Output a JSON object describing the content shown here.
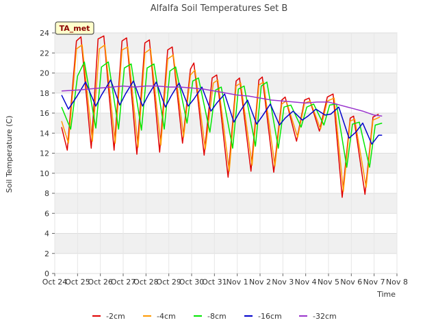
{
  "chart_data": {
    "type": "line",
    "title": "Alfalfa Soil Temperatures Set B",
    "xlabel": "Time",
    "ylabel": "Soil Temperature (C)",
    "badge": "TA_met",
    "xlim": [
      0,
      15
    ],
    "ylim": [
      0,
      24
    ],
    "x_ticks": [
      {
        "pos": 0,
        "label": "Oct 24"
      },
      {
        "pos": 1,
        "label": "Oct 25"
      },
      {
        "pos": 2,
        "label": "Oct 26"
      },
      {
        "pos": 3,
        "label": "Oct 27"
      },
      {
        "pos": 4,
        "label": "Oct 28"
      },
      {
        "pos": 5,
        "label": "Oct 29"
      },
      {
        "pos": 6,
        "label": "Oct 30"
      },
      {
        "pos": 7,
        "label": "Oct 31"
      },
      {
        "pos": 8,
        "label": "Nov 1"
      },
      {
        "pos": 9,
        "label": "Nov 2"
      },
      {
        "pos": 10,
        "label": "Nov 3"
      },
      {
        "pos": 11,
        "label": "Nov 4"
      },
      {
        "pos": 12,
        "label": "Nov 5"
      },
      {
        "pos": 13,
        "label": "Nov 6"
      },
      {
        "pos": 14,
        "label": "Nov 7"
      },
      {
        "pos": 15,
        "label": "Nov 8"
      }
    ],
    "y_ticks": [
      0,
      2,
      4,
      6,
      8,
      10,
      12,
      14,
      16,
      18,
      20,
      22,
      24
    ],
    "grid": true,
    "legend_position": "bottom",
    "series": [
      {
        "name": "-2cm",
        "color": "#e00000",
        "x": [
          0.3,
          0.55,
          0.95,
          1.15,
          1.6,
          1.9,
          2.15,
          2.6,
          2.95,
          3.15,
          3.6,
          3.95,
          4.15,
          4.6,
          4.95,
          5.15,
          5.6,
          5.95,
          6.1,
          6.55,
          6.9,
          7.1,
          7.6,
          7.95,
          8.1,
          8.6,
          8.95,
          9.1,
          9.6,
          9.95,
          10.1,
          10.6,
          10.95,
          11.15,
          11.6,
          11.95,
          12.2,
          12.6,
          12.95,
          13.1,
          13.6,
          13.95,
          14.2
        ],
        "y": [
          14.6,
          12.3,
          23.2,
          23.6,
          12.5,
          23.4,
          23.7,
          12.3,
          23.2,
          23.5,
          11.9,
          23.0,
          23.3,
          12.1,
          22.3,
          22.6,
          13.0,
          20.4,
          21.0,
          11.8,
          19.5,
          19.8,
          9.6,
          19.2,
          19.5,
          10.2,
          19.3,
          19.6,
          10.1,
          17.3,
          17.6,
          13.2,
          17.3,
          17.5,
          14.2,
          17.6,
          17.9,
          7.6,
          15.5,
          15.7,
          7.9,
          15.6,
          15.9
        ]
      },
      {
        "name": "-4cm",
        "color": "#ff9900",
        "x": [
          0.3,
          0.6,
          0.95,
          1.2,
          1.65,
          1.95,
          2.2,
          2.65,
          2.95,
          3.2,
          3.65,
          3.95,
          4.2,
          4.65,
          4.95,
          5.2,
          5.65,
          5.95,
          6.15,
          6.6,
          6.95,
          7.15,
          7.65,
          7.95,
          8.15,
          8.65,
          8.95,
          9.15,
          9.65,
          9.95,
          10.15,
          10.65,
          10.95,
          11.2,
          11.65,
          11.95,
          12.25,
          12.65,
          12.95,
          13.15,
          13.65,
          13.95,
          14.25
        ],
        "y": [
          15.2,
          13.0,
          22.4,
          22.8,
          13.2,
          22.4,
          22.8,
          13.0,
          22.3,
          22.6,
          12.6,
          22.0,
          22.4,
          12.8,
          21.4,
          21.8,
          13.6,
          19.8,
          20.3,
          12.4,
          19.0,
          19.3,
          10.2,
          18.7,
          19.0,
          10.8,
          18.8,
          19.1,
          10.7,
          16.9,
          17.2,
          13.6,
          17.0,
          17.2,
          14.4,
          17.2,
          17.5,
          8.2,
          15.2,
          15.4,
          8.6,
          15.3,
          15.6
        ]
      },
      {
        "name": "-8cm",
        "color": "#00e600",
        "x": [
          0.3,
          0.7,
          1.0,
          1.3,
          1.8,
          2.05,
          2.35,
          2.8,
          3.05,
          3.35,
          3.8,
          4.05,
          4.35,
          4.8,
          5.05,
          5.3,
          5.8,
          6.05,
          6.3,
          6.8,
          7.05,
          7.3,
          7.8,
          8.05,
          8.3,
          8.8,
          9.05,
          9.3,
          9.8,
          10.05,
          10.35,
          10.8,
          11.05,
          11.35,
          11.8,
          12.05,
          12.35,
          12.8,
          13.05,
          13.35,
          13.8,
          14.05,
          14.35
        ],
        "y": [
          16.6,
          14.4,
          19.7,
          21.1,
          14.5,
          20.6,
          21.1,
          14.4,
          20.5,
          20.9,
          14.3,
          20.5,
          20.9,
          14.4,
          20.2,
          20.6,
          15.0,
          19.2,
          19.5,
          14.1,
          18.3,
          18.6,
          12.5,
          18.4,
          18.7,
          12.7,
          18.7,
          19.1,
          12.5,
          16.6,
          16.8,
          14.6,
          16.6,
          16.9,
          14.8,
          16.8,
          16.9,
          10.6,
          14.9,
          15.1,
          10.6,
          14.8,
          15.0
        ]
      },
      {
        "name": "-16cm",
        "color": "#0000cc",
        "x": [
          0.3,
          0.6,
          0.95,
          1.35,
          1.8,
          2.05,
          2.45,
          2.85,
          3.1,
          3.45,
          3.85,
          4.1,
          4.45,
          4.85,
          5.1,
          5.45,
          5.85,
          6.1,
          6.45,
          6.85,
          7.1,
          7.45,
          7.85,
          8.1,
          8.45,
          8.85,
          9.1,
          9.45,
          9.85,
          10.1,
          10.45,
          10.85,
          11.1,
          11.45,
          11.85,
          12.1,
          12.45,
          12.9,
          13.2,
          13.5,
          13.9,
          14.2,
          14.35
        ],
        "y": [
          17.8,
          16.4,
          17.6,
          19.1,
          16.7,
          17.8,
          19.3,
          16.8,
          17.9,
          19.2,
          16.7,
          17.8,
          19.1,
          16.6,
          17.7,
          19.0,
          16.7,
          17.4,
          18.6,
          16.2,
          17.0,
          17.9,
          15.1,
          16.1,
          17.3,
          14.9,
          15.7,
          16.9,
          14.8,
          15.5,
          16.2,
          15.3,
          15.7,
          16.4,
          15.8,
          15.9,
          16.6,
          13.5,
          14.1,
          15.0,
          12.9,
          13.8,
          13.8
        ]
      },
      {
        "name": "-32cm",
        "color": "#9933cc",
        "x": [
          0.3,
          1.0,
          1.5,
          2.0,
          2.5,
          3.0,
          3.5,
          4.0,
          4.5,
          5.0,
          5.5,
          6.0,
          6.5,
          7.0,
          7.5,
          8.0,
          8.5,
          9.0,
          9.5,
          10.0,
          10.5,
          11.0,
          11.5,
          12.0,
          12.5,
          13.0,
          13.5,
          14.0,
          14.35
        ],
        "y": [
          18.2,
          18.3,
          18.4,
          18.5,
          18.6,
          18.7,
          18.6,
          18.7,
          18.7,
          18.6,
          18.6,
          18.5,
          18.4,
          18.2,
          18.0,
          17.8,
          17.7,
          17.5,
          17.3,
          17.2,
          17.1,
          17.0,
          17.1,
          17.1,
          16.8,
          16.5,
          16.2,
          15.8,
          15.7
        ]
      }
    ]
  }
}
